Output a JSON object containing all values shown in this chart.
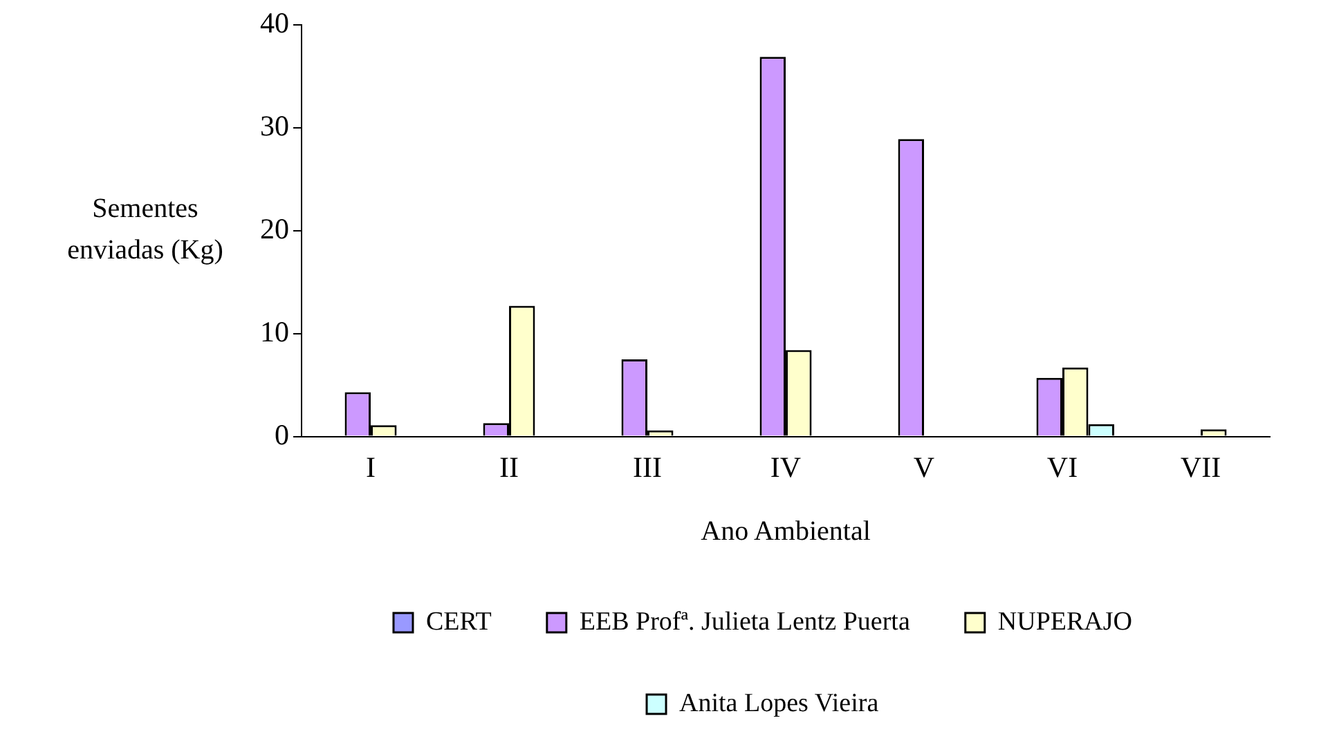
{
  "chart_data": {
    "type": "bar",
    "xlabel": "Ano Ambiental",
    "ylabel": "Sementes\nenviadas (Kg)",
    "categories": [
      "I",
      "II",
      "III",
      "IV",
      "V",
      "VI",
      "VII"
    ],
    "series": [
      {
        "name": "CERT",
        "color": "#9999ff",
        "values": [
          null,
          null,
          null,
          null,
          null,
          null,
          0
        ]
      },
      {
        "name": "EEB Profª. Julieta Lentz Puerta",
        "color": "#cc99ff",
        "values": [
          4.3,
          1.3,
          7.5,
          36.9,
          28.9,
          5.7,
          0
        ]
      },
      {
        "name": "NUPERAJO",
        "color": "#ffffcc",
        "values": [
          1.1,
          12.7,
          0.6,
          8.4,
          0,
          6.7,
          0.7
        ]
      },
      {
        "name": "Anita Lopes Vieira",
        "color": "#ccffff",
        "values": [
          0,
          0,
          0,
          0,
          0,
          1.2,
          0
        ]
      }
    ],
    "ylim": [
      0,
      40
    ],
    "yticks": [
      0,
      10,
      20,
      30,
      40
    ],
    "grid": false,
    "legend": "bottom"
  }
}
